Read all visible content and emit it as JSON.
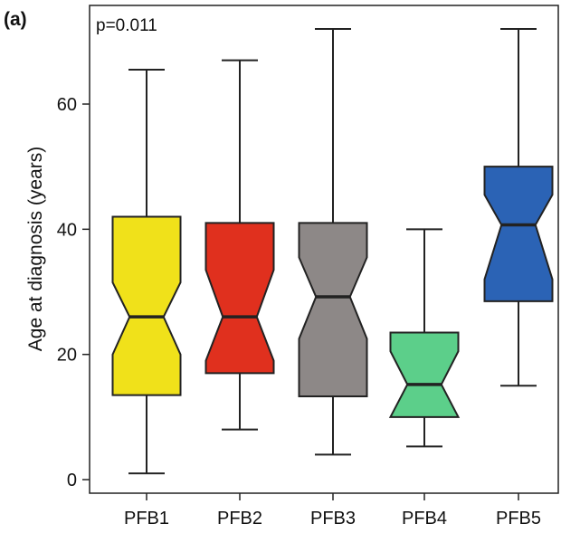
{
  "panel_label": "(a)",
  "chart_data": {
    "type": "boxplot",
    "notched": true,
    "annotation": "p=0.011",
    "xlabel": "",
    "ylabel": "Age at diagnosis (years)",
    "ylim": [
      -2,
      75
    ],
    "yticks": [
      0,
      20,
      40,
      60
    ],
    "grid": false,
    "categories": [
      "PFB1",
      "PFB2",
      "PFB3",
      "PFB4",
      "PFB5"
    ],
    "boxes": [
      {
        "name": "PFB1",
        "min": 1,
        "q1": 13.5,
        "median": 26,
        "q3": 42,
        "max": 65.5,
        "notch_low": 20,
        "notch_high": 31.5,
        "color": "#f0e11a"
      },
      {
        "name": "PFB2",
        "min": 8,
        "q1": 17,
        "median": 26,
        "q3": 41,
        "max": 67,
        "notch_low": 19,
        "notch_high": 33.5,
        "color": "#e0301e"
      },
      {
        "name": "PFB3",
        "min": 4,
        "q1": 13.3,
        "median": 29.2,
        "q3": 41,
        "max": 72,
        "notch_low": 22.5,
        "notch_high": 35.5,
        "color": "#8d8887"
      },
      {
        "name": "PFB4",
        "min": 5.3,
        "q1": 10,
        "median": 15.2,
        "q3": 23.5,
        "max": 40,
        "notch_low": 10,
        "notch_high": 20.5,
        "color": "#5ccf8a"
      },
      {
        "name": "PFB5",
        "min": 15,
        "q1": 28.5,
        "median": 40.7,
        "q3": 50,
        "max": 72,
        "notch_low": 32,
        "notch_high": 45.5,
        "color": "#2b63b5"
      }
    ]
  }
}
